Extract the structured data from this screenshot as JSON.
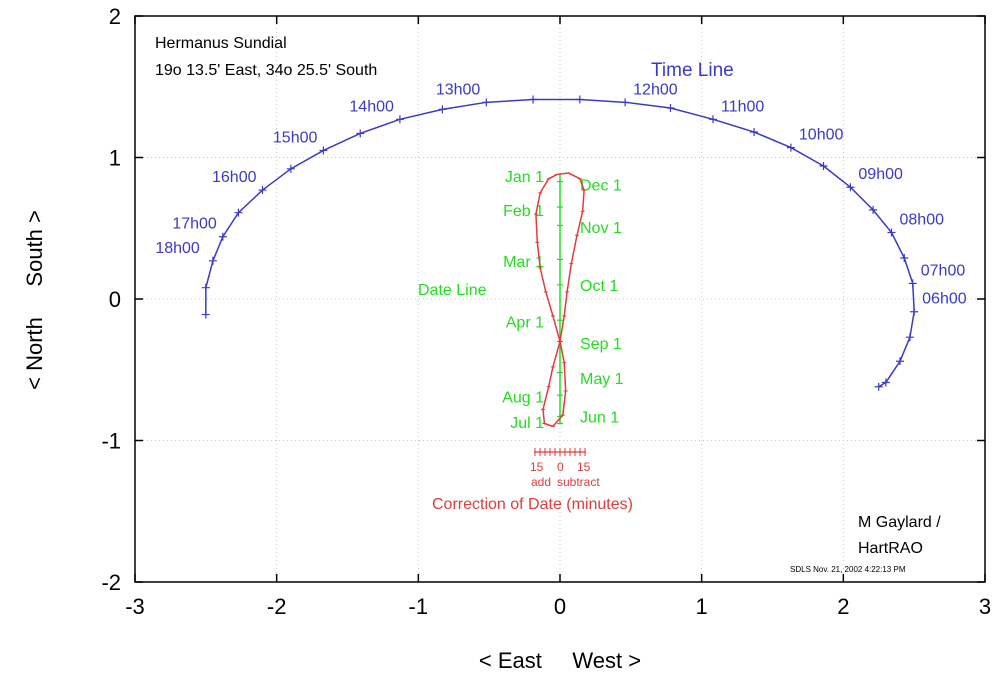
{
  "chart_data": {
    "type": "line",
    "xlabel": "< East     West >",
    "ylabel": "< North     South >",
    "xlim": [
      -3,
      3
    ],
    "ylim": [
      -2,
      2
    ],
    "xticks": [
      "-3",
      "-2",
      "-1",
      "0",
      "1",
      "2",
      "3"
    ],
    "yticks": [
      "-2",
      "-1",
      "0",
      "1",
      "2"
    ],
    "grid": true,
    "colors": {
      "time": "#3a3ac8",
      "date": "#22dd22",
      "analemma": "#e03c3c",
      "text": "#000000"
    },
    "header": {
      "title": "Hermanus Sundial",
      "coords": "19o 13.5' East, 34o 25.5' South"
    },
    "credit": {
      "line1": "M Gaylard /",
      "line2": "HartRAO",
      "stamp": "SDLS  Nov. 21, 2002  4:22:13 PM"
    },
    "time_line": {
      "label": "Time Line",
      "points": [
        [
          -2.5,
          -0.11
        ],
        [
          -2.5,
          0.08
        ],
        [
          -2.45,
          0.27
        ],
        [
          -2.38,
          0.44
        ],
        [
          -2.27,
          0.61
        ],
        [
          -2.1,
          0.77
        ],
        [
          -1.9,
          0.92
        ],
        [
          -1.67,
          1.05
        ],
        [
          -1.41,
          1.17
        ],
        [
          -1.13,
          1.27
        ],
        [
          -0.83,
          1.34
        ],
        [
          -0.52,
          1.39
        ],
        [
          -0.19,
          1.41
        ],
        [
          0.14,
          1.41
        ],
        [
          0.46,
          1.39
        ],
        [
          0.78,
          1.35
        ],
        [
          1.08,
          1.27
        ],
        [
          1.37,
          1.18
        ],
        [
          1.63,
          1.07
        ],
        [
          1.86,
          0.94
        ],
        [
          2.05,
          0.79
        ],
        [
          2.21,
          0.63
        ],
        [
          2.34,
          0.47
        ],
        [
          2.43,
          0.29
        ],
        [
          2.49,
          0.11
        ],
        [
          2.5,
          -0.09
        ],
        [
          2.47,
          -0.27
        ],
        [
          2.4,
          -0.44
        ],
        [
          2.3,
          -0.59
        ],
        [
          2.25,
          -0.62
        ]
      ],
      "hours": [
        {
          "label": "18h00",
          "x": -2.5,
          "y": 0.27
        },
        {
          "label": "17h00",
          "x": -2.38,
          "y": 0.44
        },
        {
          "label": "16h00",
          "x": -2.1,
          "y": 0.77
        },
        {
          "label": "15h00",
          "x": -1.67,
          "y": 1.05
        },
        {
          "label": "14h00",
          "x": -1.13,
          "y": 1.27
        },
        {
          "label": "13h00",
          "x": -0.52,
          "y": 1.39
        },
        {
          "label": "12h00",
          "x": 0.46,
          "y": 1.39
        },
        {
          "label": "11h00",
          "x": 1.08,
          "y": 1.27
        },
        {
          "label": "10h00",
          "x": 1.63,
          "y": 1.07
        },
        {
          "label": "09h00",
          "x": 2.05,
          "y": 0.79
        },
        {
          "label": "08h00",
          "x": 2.34,
          "y": 0.47
        },
        {
          "label": "07h00",
          "x": 2.49,
          "y": 0.11
        },
        {
          "label": "06h00",
          "x": 2.5,
          "y": -0.09
        }
      ]
    },
    "date_line": {
      "label": "Date Line",
      "x": 0,
      "y_range": [
        -0.88,
        0.88
      ],
      "ticks": [
        0.83,
        0.65,
        0.52,
        0.28,
        0.1,
        -0.15,
        -0.3,
        -0.52,
        -0.68,
        -0.83,
        -0.88
      ],
      "dates": [
        {
          "label": "Jan 1",
          "y": 0.87,
          "side": "left"
        },
        {
          "label": "Dec 1",
          "y": 0.81,
          "side": "right"
        },
        {
          "label": "Feb 1",
          "y": 0.63,
          "side": "left"
        },
        {
          "label": "Nov 1",
          "y": 0.51,
          "side": "right"
        },
        {
          "label": "Mar 1",
          "y": 0.27,
          "side": "left"
        },
        {
          "label": "Oct 1",
          "y": 0.1,
          "side": "right"
        },
        {
          "label": "Apr 1",
          "y": -0.16,
          "side": "left"
        },
        {
          "label": "Sep 1",
          "y": -0.31,
          "side": "right"
        },
        {
          "label": "May 1",
          "y": -0.56,
          "side": "right"
        },
        {
          "label": "Aug 1",
          "y": -0.69,
          "side": "left"
        },
        {
          "label": "Jun 1",
          "y": -0.83,
          "side": "right"
        },
        {
          "label": "Jul 1",
          "y": -0.87,
          "side": "left"
        }
      ]
    },
    "analemma": {
      "points": [
        [
          -0.02,
          0.88
        ],
        [
          0.06,
          0.89
        ],
        [
          0.14,
          0.85
        ],
        [
          0.17,
          0.77
        ],
        [
          0.16,
          0.62
        ],
        [
          0.12,
          0.45
        ],
        [
          0.08,
          0.25
        ],
        [
          0.05,
          0.05
        ],
        [
          0.03,
          -0.12
        ],
        [
          0.0,
          -0.3
        ],
        [
          -0.05,
          -0.48
        ],
        [
          -0.08,
          -0.62
        ],
        [
          -0.12,
          -0.78
        ],
        [
          -0.11,
          -0.88
        ],
        [
          -0.05,
          -0.9
        ],
        [
          0.02,
          -0.82
        ],
        [
          0.04,
          -0.65
        ],
        [
          0.03,
          -0.45
        ],
        [
          0.0,
          -0.3
        ],
        [
          -0.05,
          -0.12
        ],
        [
          -0.1,
          0.05
        ],
        [
          -0.14,
          0.22
        ],
        [
          -0.16,
          0.4
        ],
        [
          -0.17,
          0.6
        ],
        [
          -0.14,
          0.75
        ],
        [
          -0.08,
          0.85
        ],
        [
          -0.02,
          0.88
        ]
      ]
    },
    "correction": {
      "title": "Correction of Date (minutes)",
      "left_label": "15",
      "zero_label": "0",
      "right_label": "15",
      "add_label": "add",
      "subtract_label": "subtract"
    }
  }
}
